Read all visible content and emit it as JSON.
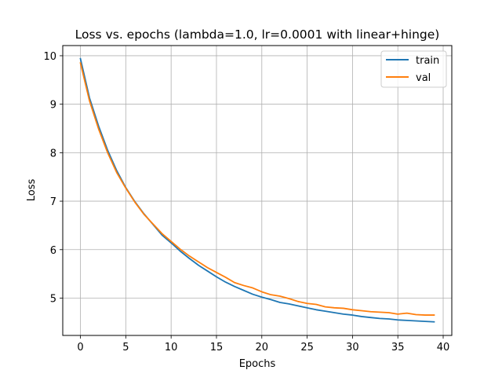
{
  "chart_data": {
    "type": "line",
    "title": "Loss vs. epochs (lambda=1.0, lr=0.0001 with linear+hinge)",
    "xlabel": "Epochs",
    "ylabel": "Loss",
    "xlim": [
      -1.95,
      40.95
    ],
    "ylim": [
      4.23,
      10.21
    ],
    "xticks": [
      0,
      5,
      10,
      15,
      20,
      25,
      30,
      35,
      40
    ],
    "yticks": [
      5,
      6,
      7,
      8,
      9,
      10
    ],
    "grid": true,
    "legend_position": "top-right",
    "x": [
      0,
      1,
      2,
      3,
      4,
      5,
      6,
      7,
      8,
      9,
      10,
      11,
      12,
      13,
      14,
      15,
      16,
      17,
      18,
      19,
      20,
      21,
      22,
      23,
      24,
      25,
      26,
      27,
      28,
      29,
      30,
      31,
      32,
      33,
      34,
      35,
      36,
      37,
      38,
      39
    ],
    "series": [
      {
        "name": "train",
        "color": "#1f77b4",
        "values": [
          9.94,
          9.13,
          8.55,
          8.05,
          7.63,
          7.28,
          6.99,
          6.74,
          6.52,
          6.3,
          6.14,
          5.97,
          5.82,
          5.68,
          5.56,
          5.44,
          5.33,
          5.24,
          5.16,
          5.08,
          5.02,
          4.97,
          4.91,
          4.88,
          4.84,
          4.8,
          4.76,
          4.73,
          4.7,
          4.67,
          4.65,
          4.62,
          4.6,
          4.58,
          4.57,
          4.55,
          4.54,
          4.53,
          4.52,
          4.51
        ]
      },
      {
        "name": "val",
        "color": "#ff7f0e",
        "values": [
          9.85,
          9.07,
          8.49,
          8.0,
          7.59,
          7.27,
          6.98,
          6.73,
          6.53,
          6.33,
          6.17,
          6.01,
          5.87,
          5.75,
          5.63,
          5.53,
          5.43,
          5.32,
          5.26,
          5.21,
          5.13,
          5.07,
          5.04,
          4.99,
          4.93,
          4.89,
          4.87,
          4.82,
          4.8,
          4.79,
          4.76,
          4.74,
          4.72,
          4.71,
          4.7,
          4.67,
          4.69,
          4.66,
          4.65,
          4.65
        ]
      }
    ]
  }
}
